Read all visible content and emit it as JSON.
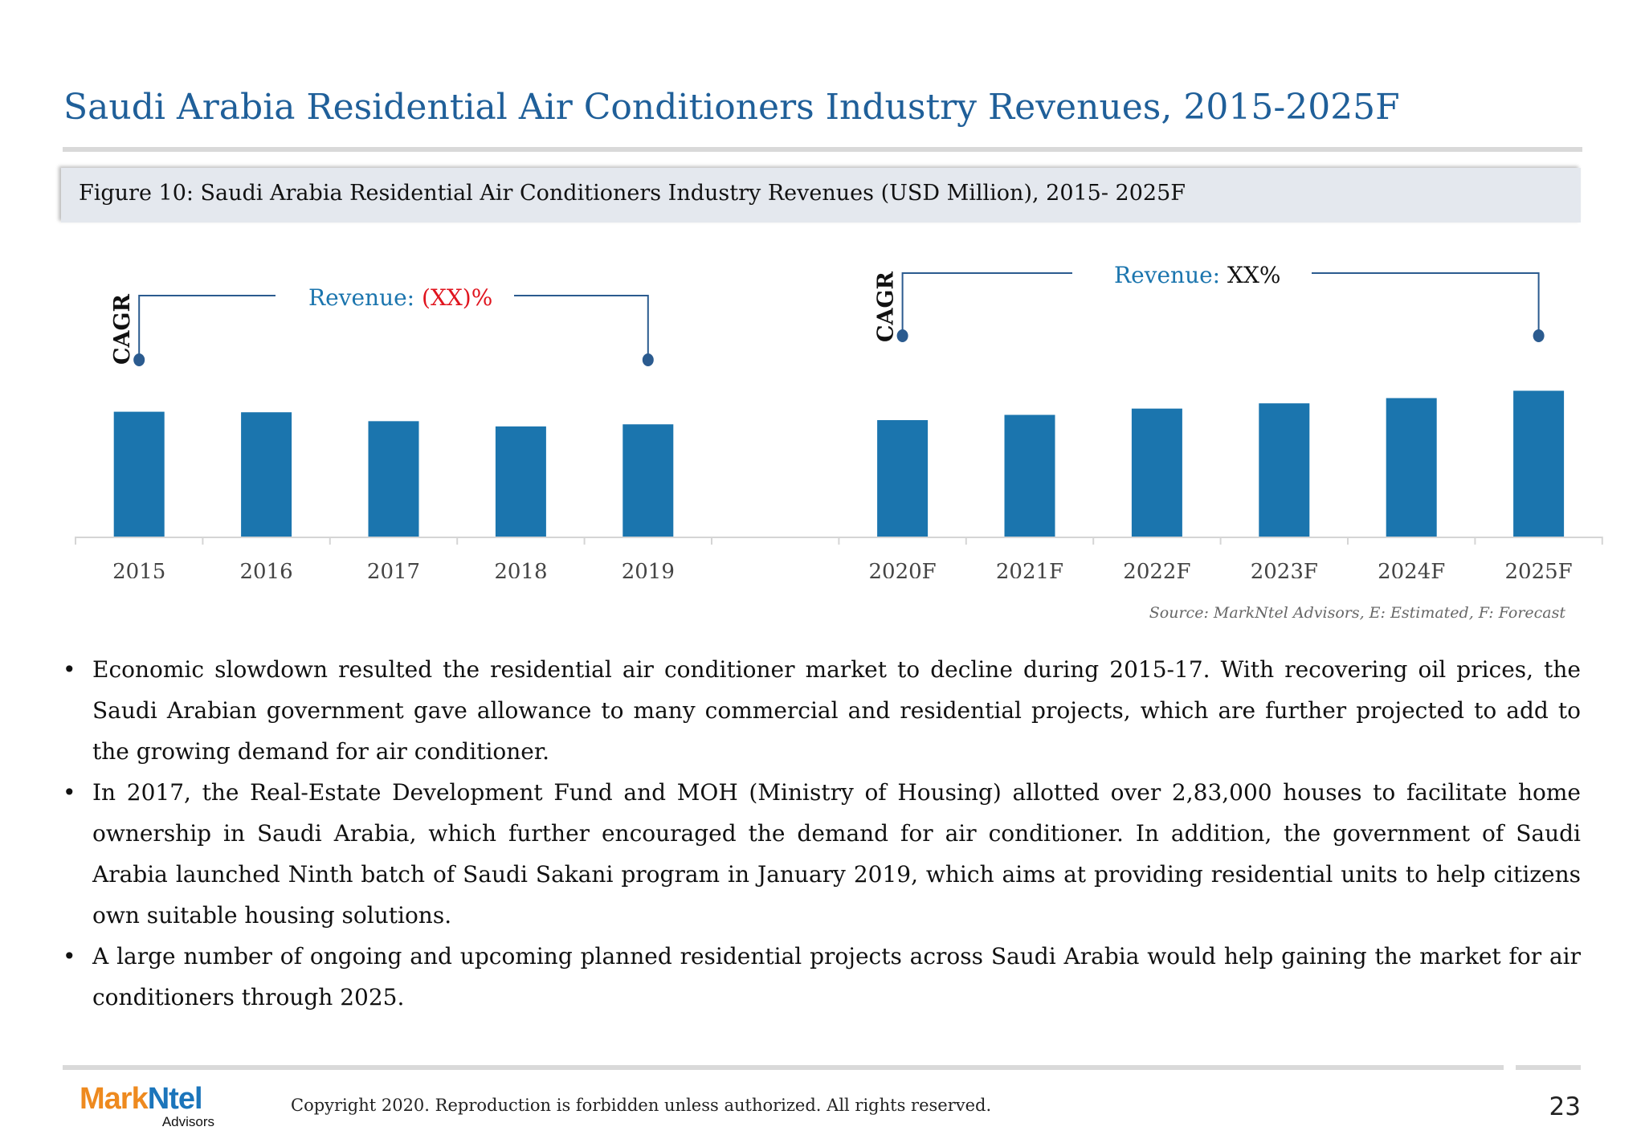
{
  "title": "Saudi Arabia Residential Air Conditioners Industry Revenues, 2015-2025F",
  "figure_caption": "Figure 10: Saudi Arabia Residential Air Conditioners Industry Revenues (USD Million), 2015- 2025F",
  "colors": {
    "title": "#1f5f99",
    "bar": "#1b75ae",
    "bracket": "#2b5b8f",
    "negative": "#e0141e"
  },
  "chart_data": {
    "type": "bar",
    "title": "",
    "xlabel": "",
    "ylabel": "",
    "grid": false,
    "value_labels_shown": false,
    "categories": [
      "2015",
      "2016",
      "2017",
      "2018",
      "2019",
      "2020F",
      "2021F",
      "2022F",
      "2023F",
      "2024F",
      "2025F"
    ],
    "values": [
      119,
      118.5,
      110,
      105,
      107,
      111,
      116,
      122,
      127,
      132,
      139
    ],
    "ylim": [
      0,
      160
    ],
    "annotations": [
      {
        "label": "CAGR",
        "text_prefix": "Revenue: ",
        "text_value": "(XX)%",
        "value_color": "#e0141e",
        "from": "2015",
        "to": "2019"
      },
      {
        "label": "CAGR",
        "text_prefix": "Revenue: ",
        "text_value": "XX%",
        "value_color": "#111111",
        "from": "2020F",
        "to": "2025F"
      }
    ]
  },
  "source": "Source: MarkNtel Advisors, E: Estimated, F: Forecast",
  "bullets": [
    "Economic slowdown resulted the residential air conditioner market to decline during 2015-17. With recovering oil prices, the Saudi Arabian government gave allowance to many commercial and residential projects, which are further projected to add to the growing demand for air conditioner.",
    "In 2017, the Real-Estate Development Fund and MOH (Ministry of Housing) allotted over 2,83,000 houses to facilitate home ownership in Saudi Arabia, which further encouraged the demand for air conditioner. In addition, the government of Saudi Arabia launched Ninth batch of Saudi Sakani program in January 2019, which aims at providing residential units to help citizens own suitable housing solutions.",
    "A large number of ongoing and upcoming planned residential projects across Saudi Arabia would help gaining the market for air conditioners through 2025."
  ],
  "bullet_glyph": "•",
  "footer": {
    "logo_mark": "Mark",
    "logo_ntel": "Ntel",
    "logo_sub": "Advisors",
    "copyright": "Copyright 2020. Reproduction is forbidden unless authorized. All rights reserved.",
    "page_number": "23"
  }
}
